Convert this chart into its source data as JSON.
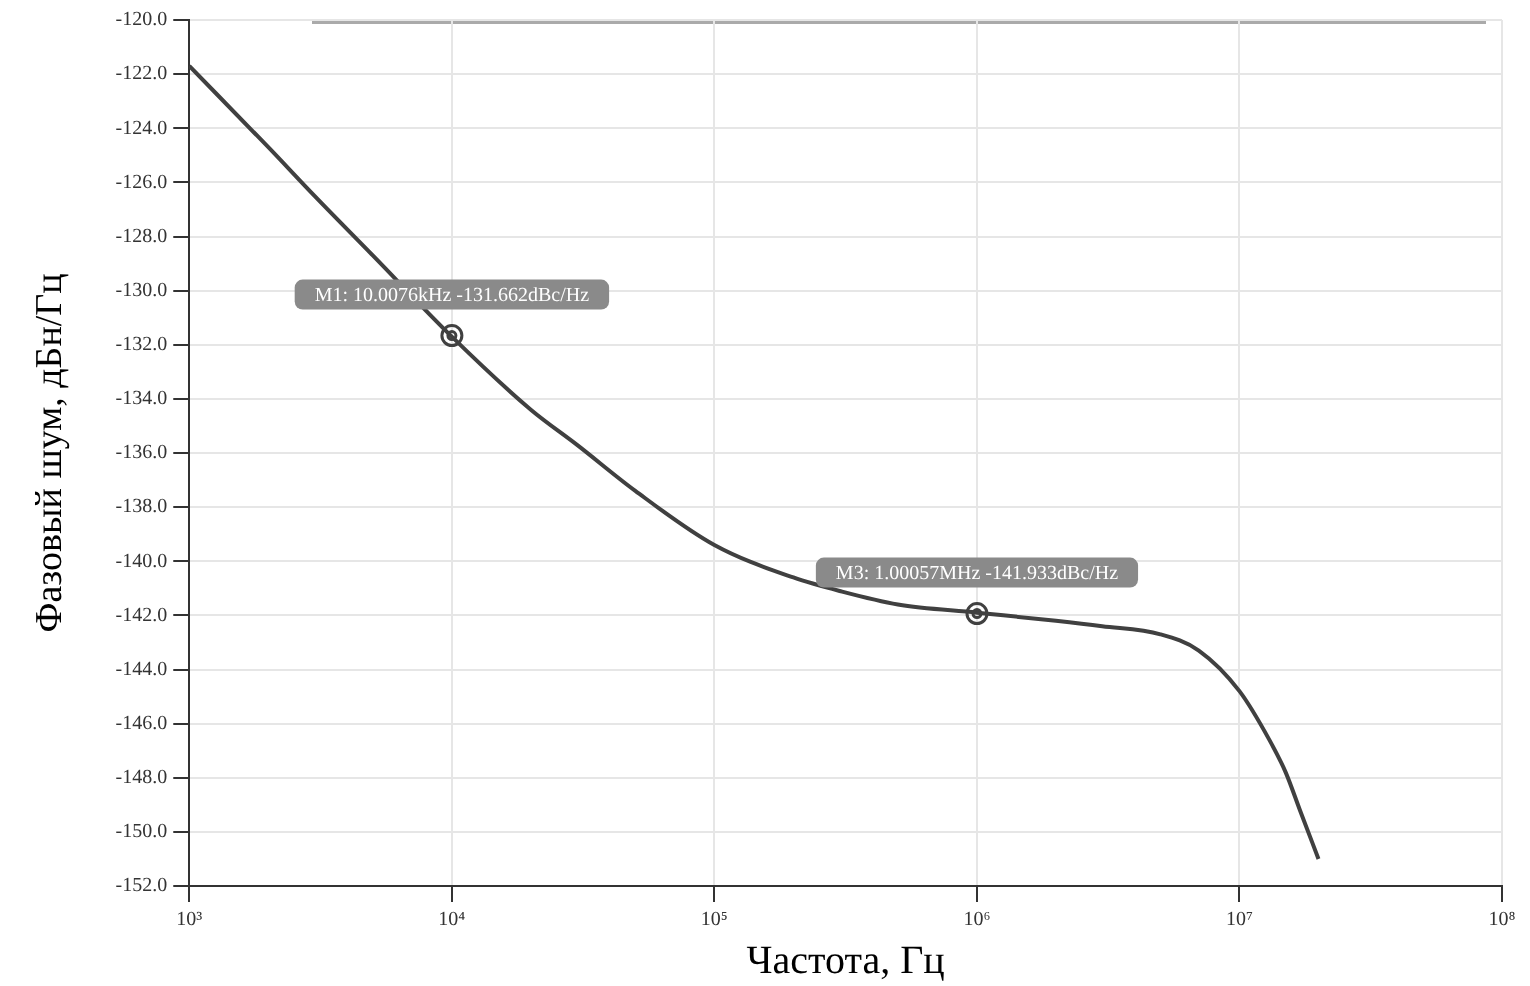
{
  "chart_data": {
    "type": "line",
    "xlabel": "Частота, Гц",
    "ylabel": "Фазовый шум, дБн/Гц",
    "log": "x",
    "x": [
      1000,
      2000,
      3000,
      5000,
      10000,
      20000,
      30000,
      50000,
      100000,
      200000,
      300000,
      500000,
      1000000,
      2000000,
      3000000,
      5000000,
      7000000,
      10000000,
      13000000,
      15000000,
      17000000,
      20000000
    ],
    "series": [
      {
        "color": "#404040",
        "values": [
          -121.7,
          -124.7,
          -126.5,
          -128.7,
          -131.7,
          -134.4,
          -135.7,
          -137.4,
          -139.4,
          -140.6,
          -141.1,
          -141.6,
          -141.9,
          -142.2,
          -142.4,
          -142.7,
          -143.3,
          -144.8,
          -146.6,
          -147.8,
          -149.2,
          -151.0
        ]
      }
    ],
    "xlim": [
      1000,
      100000000
    ],
    "xticks": [
      {
        "value": 1000,
        "label": "10³"
      },
      {
        "value": 10000,
        "label": "10⁴"
      },
      {
        "value": 100000,
        "label": "10⁵"
      },
      {
        "value": 1000000,
        "label": "10⁶"
      },
      {
        "value": 10000000,
        "label": "10⁷"
      },
      {
        "value": 100000000,
        "label": "10⁸"
      }
    ],
    "ylim": [
      -152,
      -120
    ],
    "yticks": [
      {
        "value": -152,
        "label": "-152.0"
      },
      {
        "value": -150,
        "label": "-150.0"
      },
      {
        "value": -148,
        "label": "-148.0"
      },
      {
        "value": -146,
        "label": "-146.0"
      },
      {
        "value": -144,
        "label": "-144.0"
      },
      {
        "value": -142,
        "label": "-142.0"
      },
      {
        "value": -140,
        "label": "-140.0"
      },
      {
        "value": -138,
        "label": "-138.0"
      },
      {
        "value": -136,
        "label": "-136.0"
      },
      {
        "value": -134,
        "label": "-134.0"
      },
      {
        "value": -132,
        "label": "-132.0"
      },
      {
        "value": -130,
        "label": "-130.0"
      },
      {
        "value": -128,
        "label": "-128.0"
      },
      {
        "value": -126,
        "label": "-126.0"
      },
      {
        "value": -124,
        "label": "-124.0"
      },
      {
        "value": -122,
        "label": "-122.0"
      },
      {
        "value": -120,
        "label": "-120.0"
      }
    ],
    "annotations": [
      {
        "text": "M1: 10.0076kHz -131.662dBc/Hz",
        "x": 10007.6,
        "y": -131.662
      },
      {
        "text": "M3: 1.00057MHz -141.933dBc/Hz",
        "x": 1000570,
        "y": -141.933
      }
    ],
    "grid": true,
    "legend": false,
    "marker": "none",
    "line_style": "solid"
  }
}
